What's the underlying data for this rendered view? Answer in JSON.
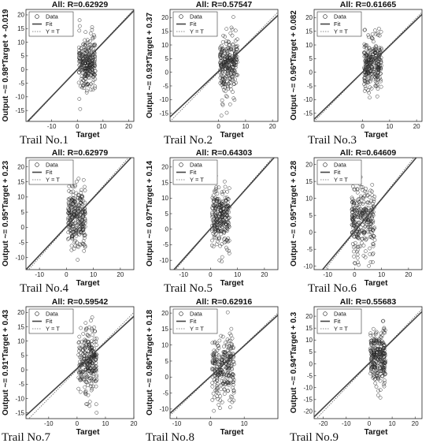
{
  "chart_data": [
    {
      "type": "scatter",
      "title": "All: R=0.62929",
      "xlabel": "Target",
      "ylabel": "Output ~= 0.98*Target + -0.019",
      "trail": "Trail No.1",
      "xticks": [
        "-10",
        "0",
        "10",
        "20"
      ],
      "yticks": [
        "-15",
        "-10",
        "-5",
        "0",
        "5",
        "10",
        "15",
        "20"
      ],
      "xlim": [
        -20,
        22
      ],
      "ylim": [
        -19,
        22
      ],
      "fit": {
        "slope": 0.98,
        "intercept": -0.019
      },
      "cloud": {
        "x_range": [
          0.5,
          7
        ],
        "y_mean": 2.5,
        "y_sd": 5,
        "y_range": [
          -18,
          21
        ],
        "n": 260,
        "seed": 11
      },
      "legend": [
        "Data",
        "Fit",
        "Y = T"
      ]
    },
    {
      "type": "scatter",
      "title": "All: R=0.57547",
      "xlabel": "Target",
      "ylabel": "Output ~= 0.93*Target + 0.37",
      "trail": "Trail No.2",
      "xticks": [
        "0",
        "10",
        "20"
      ],
      "yticks": [
        "-15",
        "-10",
        "-5",
        "0",
        "5",
        "10",
        "15",
        "20"
      ],
      "xlim": [
        -18,
        22
      ],
      "ylim": [
        -18,
        23
      ],
      "fit": {
        "slope": 0.93,
        "intercept": 0.37
      },
      "cloud": {
        "x_range": [
          0.5,
          7
        ],
        "y_mean": 3,
        "y_sd": 5.5,
        "y_range": [
          -16,
          22
        ],
        "n": 260,
        "seed": 23
      },
      "legend": [
        "Data",
        "Fit",
        "Y = T"
      ]
    },
    {
      "type": "scatter",
      "title": "All: R=0.61665",
      "xlabel": "Target",
      "ylabel": "Output ~= 0.96*Target + 0.082",
      "trail": "Trail No.3",
      "xticks": [
        "0",
        "10",
        "20"
      ],
      "yticks": [
        "-15",
        "-10",
        "-5",
        "0",
        "5",
        "10",
        "15",
        "20"
      ],
      "xlim": [
        -18,
        22
      ],
      "ylim": [
        -18,
        23
      ],
      "fit": {
        "slope": 0.96,
        "intercept": 0.082
      },
      "cloud": {
        "x_range": [
          0.5,
          7
        ],
        "y_mean": 3,
        "y_sd": 5,
        "y_range": [
          -16,
          22
        ],
        "n": 260,
        "seed": 37
      },
      "legend": [
        "Data",
        "Fit",
        "Y = T"
      ]
    },
    {
      "type": "scatter",
      "title": "All: R=0.62979",
      "xlabel": "Target",
      "ylabel": "Output ~= 0.95*Target + 0.23",
      "trail": "Trail No.4",
      "xticks": [
        "-10",
        "0",
        "10",
        "20"
      ],
      "yticks": [
        "-10",
        "-5",
        "0",
        "5",
        "10",
        "15",
        "20"
      ],
      "xlim": [
        -15,
        25
      ],
      "ylim": [
        -14,
        23
      ],
      "fit": {
        "slope": 0.95,
        "intercept": 0.23
      },
      "cloud": {
        "x_range": [
          0.5,
          7
        ],
        "y_mean": 3,
        "y_sd": 5,
        "y_range": [
          -13,
          22
        ],
        "n": 260,
        "seed": 41
      },
      "legend": [
        "Data",
        "Fit",
        "Y = T"
      ]
    },
    {
      "type": "scatter",
      "title": "All: R=0.64303",
      "xlabel": "Target",
      "ylabel": "Output ~= 0.97*Target + 0.14",
      "trail": "Trail No.5",
      "xticks": [
        "-10",
        "0",
        "10",
        "20"
      ],
      "yticks": [
        "-10",
        "-5",
        "0",
        "5",
        "10",
        "15",
        "20"
      ],
      "xlim": [
        -15,
        25
      ],
      "ylim": [
        -13,
        23
      ],
      "fit": {
        "slope": 0.97,
        "intercept": 0.14
      },
      "cloud": {
        "x_range": [
          0.5,
          7
        ],
        "y_mean": 3,
        "y_sd": 5,
        "y_range": [
          -12,
          21
        ],
        "n": 260,
        "seed": 53
      },
      "legend": [
        "Data",
        "Fit",
        "Y = T"
      ]
    },
    {
      "type": "scatter",
      "title": "All: R=0.64609",
      "xlabel": "Target",
      "ylabel": "Output ~= 0.95*Target + 0.28",
      "trail": "Trail No.6",
      "xticks": [
        "-10",
        "0",
        "10",
        "20"
      ],
      "yticks": [
        "-10",
        "-5",
        "0",
        "5",
        "10",
        "15",
        "20"
      ],
      "xlim": [
        -15,
        25
      ],
      "ylim": [
        -11,
        22
      ],
      "fit": {
        "slope": 0.95,
        "intercept": 0.28
      },
      "cloud": {
        "x_range": [
          -1,
          7.5
        ],
        "y_mean": 3,
        "y_sd": 5,
        "y_range": [
          -10,
          21
        ],
        "n": 280,
        "seed": 67
      },
      "legend": [
        "Data",
        "Fit",
        "Y = T"
      ]
    },
    {
      "type": "scatter",
      "title": "All: R=0.59542",
      "xlabel": "Target",
      "ylabel": "Output ~= 0.91*Target + 0.43",
      "trail": "Trail No.7",
      "xticks": [
        "-10",
        "0",
        "10",
        "20"
      ],
      "yticks": [
        "-15",
        "-10",
        "-5",
        "0",
        "5",
        "10",
        "15",
        "20"
      ],
      "xlim": [
        -18,
        20
      ],
      "ylim": [
        -17,
        22
      ],
      "fit": {
        "slope": 0.91,
        "intercept": 0.43
      },
      "cloud": {
        "x_range": [
          0.5,
          7
        ],
        "y_mean": 3,
        "y_sd": 5.5,
        "y_range": [
          -16,
          20
        ],
        "n": 260,
        "seed": 71
      },
      "legend": [
        "Data",
        "Fit",
        "Y = T"
      ]
    },
    {
      "type": "scatter",
      "title": "All: R=0.62916",
      "xlabel": "Target",
      "ylabel": "Output ~= 0.96*Target + 0.18",
      "trail": "Trail No.8",
      "xticks": [
        "-10",
        "0",
        "10"
      ],
      "yticks": [
        "-10",
        "-5",
        "0",
        "5",
        "10",
        "15",
        "20"
      ],
      "xlim": [
        -12,
        20
      ],
      "ylim": [
        -13,
        22
      ],
      "fit": {
        "slope": 0.96,
        "intercept": 0.18
      },
      "cloud": {
        "x_range": [
          0.5,
          7
        ],
        "y_mean": 3,
        "y_sd": 5,
        "y_range": [
          -12,
          21
        ],
        "n": 260,
        "seed": 83
      },
      "legend": [
        "Data",
        "Fit",
        "Y = T"
      ]
    },
    {
      "type": "scatter",
      "title": "All: R=0.55683",
      "xlabel": "Target",
      "ylabel": "Output ~= 0.94*Target + 0.3",
      "trail": "Trail No.9",
      "xticks": [
        "-20",
        "-10",
        "0",
        "10",
        "20"
      ],
      "yticks": [
        "-20",
        "-15",
        "-10",
        "-5",
        "0",
        "5",
        "10",
        "15",
        "20"
      ],
      "xlim": [
        -24,
        23
      ],
      "ylim": [
        -23,
        24
      ],
      "fit": {
        "slope": 0.94,
        "intercept": 0.3
      },
      "cloud": {
        "x_range": [
          0.5,
          7
        ],
        "y_mean": 3,
        "y_sd": 6,
        "y_range": [
          -22,
          22
        ],
        "n": 260,
        "seed": 97
      },
      "legend": [
        "Data",
        "Fit",
        "Y = T"
      ]
    }
  ]
}
